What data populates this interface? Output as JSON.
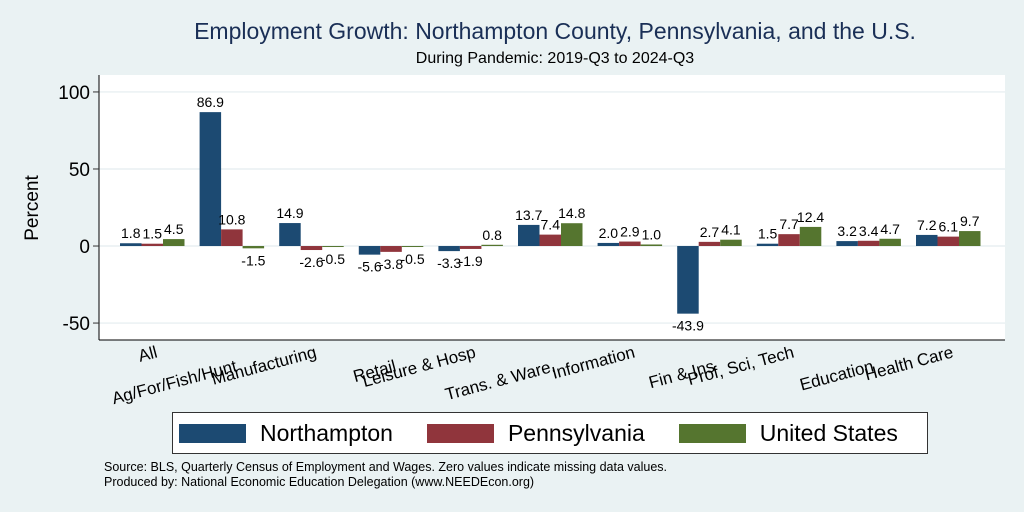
{
  "header": {
    "title": "Employment Growth: Northampton County, Pennsylvania, and the U.S.",
    "subtitle": "During Pandemic: 2019-Q3 to 2024-Q3"
  },
  "footer": {
    "source": "Source: BLS, Quarterly Census of Employment and Wages. Zero values indicate missing data values.",
    "produced_by": "Produced by: National Economic Education Delegation (www.NEEDEcon.org)"
  },
  "chart_data": {
    "type": "bar",
    "title": "Employment Growth: Northampton County, Pennsylvania, and the U.S.",
    "subtitle": "During Pandemic: 2019-Q3 to 2024-Q3",
    "xlabel": "",
    "ylabel": "Percent",
    "ylim": [
      -61,
      111
    ],
    "yticks": [
      -50,
      0,
      50,
      100
    ],
    "grid": true,
    "legend_position": "bottom",
    "categories": [
      "All",
      "Ag/For/Fish/Hunt",
      "Manufacturing",
      "Retail",
      "Leisure & Hosp",
      "Trans. & Ware.",
      "Information",
      "Fin & Ins",
      "Prof, Sci, Tech",
      "Education",
      "Health Care"
    ],
    "series": [
      {
        "name": "Northampton",
        "color": "#1c4a72",
        "values": [
          1.8,
          86.9,
          14.9,
          -5.6,
          -3.3,
          13.7,
          2.0,
          -43.9,
          1.5,
          3.2,
          7.2
        ]
      },
      {
        "name": "Pennsylvania",
        "color": "#90353c",
        "values": [
          1.5,
          10.8,
          -2.6,
          -3.8,
          -1.9,
          7.4,
          2.9,
          2.7,
          7.7,
          3.4,
          6.1
        ]
      },
      {
        "name": "United States",
        "color": "#55752f",
        "values": [
          4.5,
          -1.5,
          -0.5,
          -0.5,
          0.8,
          14.8,
          1.0,
          4.1,
          12.4,
          4.7,
          9.7
        ]
      }
    ]
  }
}
